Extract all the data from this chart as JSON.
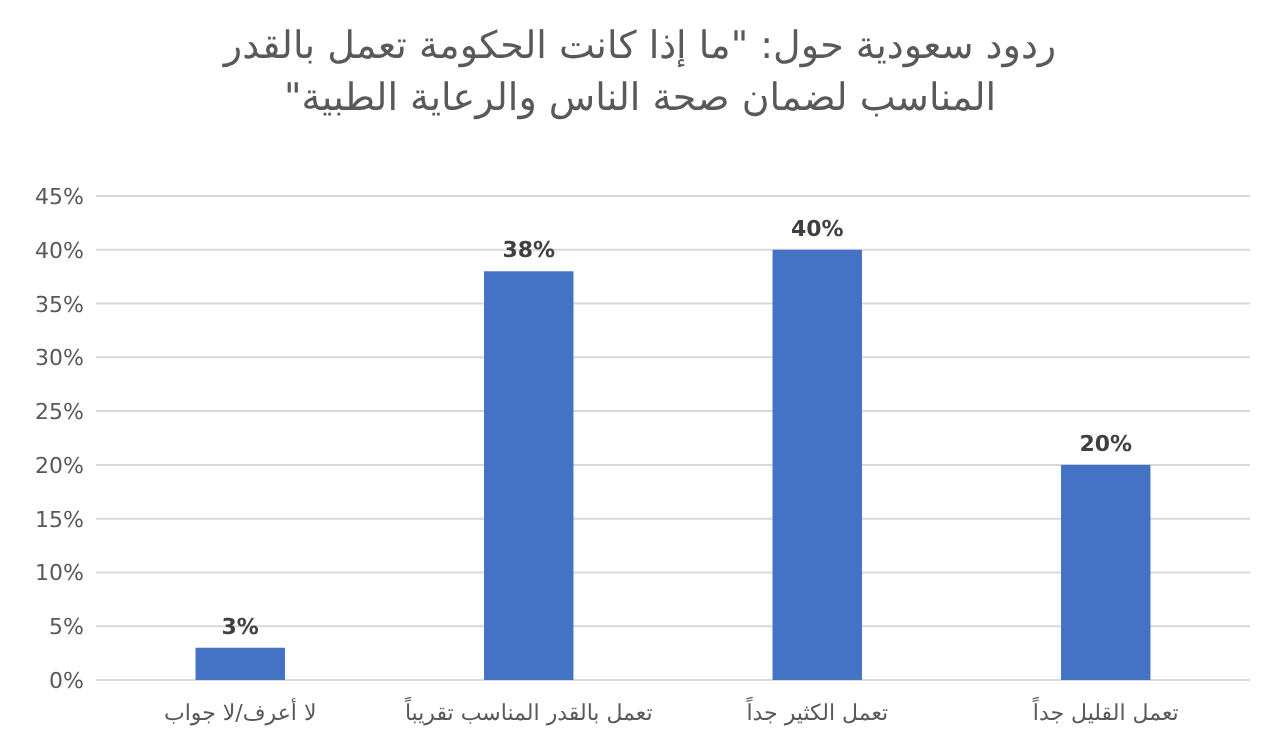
{
  "chart_data": {
    "type": "bar",
    "title": "ردود سعودية حول: \"ما إذا  كانت الحكومة تعمل بالقدر المناسب  لضمان صحة الناس والرعاية الطبية\"",
    "categories": [
      "لا أعرف/لا جواب",
      "تعمل بالقدر المناسب تقريباً",
      "تعمل الكثير جداً",
      "تعمل القليل جداً"
    ],
    "values": [
      3,
      38,
      40,
      20
    ],
    "value_labels": [
      "3%",
      "38%",
      "40%",
      "20%"
    ],
    "color": "#4472c4",
    "ylim": [
      0,
      45
    ],
    "yticks": [
      {
        "value": 0,
        "label": "0%"
      },
      {
        "value": 5,
        "label": "5%"
      },
      {
        "value": 10,
        "label": "10%"
      },
      {
        "value": 15,
        "label": "15%"
      },
      {
        "value": 20,
        "label": "20%"
      },
      {
        "value": 25,
        "label": "25%"
      },
      {
        "value": 30,
        "label": "30%"
      },
      {
        "value": 35,
        "label": "35%"
      },
      {
        "value": 40,
        "label": "40%"
      },
      {
        "value": 45,
        "label": "45%"
      }
    ],
    "grid": "y"
  }
}
